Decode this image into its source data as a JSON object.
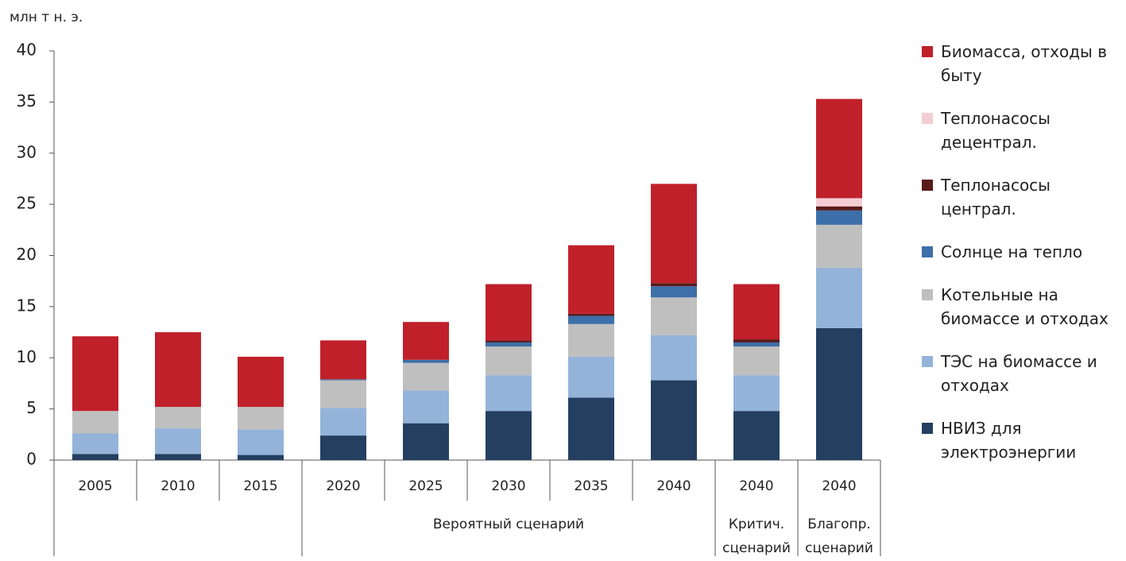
{
  "chart_data": {
    "type": "stacked-bar",
    "y_axis_label": "млн т н. э.",
    "categories": [
      "2005",
      "2010",
      "2015",
      "2020",
      "2025",
      "2030",
      "2035",
      "2040",
      "2040",
      "2040"
    ],
    "groups": [
      {
        "label": null,
        "span": 3
      },
      {
        "label": "Вероятный сценарий",
        "span": 5
      },
      {
        "label": "Критич. сценарий",
        "span": 1
      },
      {
        "label": "Благопр. сценарий",
        "span": 1
      }
    ],
    "series": [
      {
        "name": "Биомасса, отходы в быту",
        "color": "#c0202a",
        "values": [
          7.3,
          7.3,
          4.9,
          3.8,
          3.7,
          5.5,
          6.7,
          9.7,
          5.4,
          9.7
        ]
      },
      {
        "name": "Теплонасосы децентрал.",
        "color": "#f4cdd4",
        "values": [
          0,
          0,
          0,
          0,
          0,
          0,
          0,
          0,
          0,
          0.8
        ]
      },
      {
        "name": "Теплонасосы централ.",
        "color": "#5a1a1a",
        "values": [
          0,
          0,
          0,
          0,
          0,
          0.2,
          0.2,
          0.3,
          0.3,
          0.4
        ]
      },
      {
        "name": "Солнце на тепло",
        "color": "#3d6fa8",
        "values": [
          0,
          0,
          0,
          0.1,
          0.3,
          0.4,
          0.8,
          1.1,
          0.4,
          1.4
        ]
      },
      {
        "name": "Котельные на биомассе и отходах",
        "color": "#bfbfbf",
        "values": [
          2.2,
          2.1,
          2.2,
          2.7,
          2.7,
          2.8,
          3.2,
          3.7,
          2.8,
          4.2
        ]
      },
      {
        "name": "ТЭС на биомассе и отходах",
        "color": "#93b3d9",
        "values": [
          2.0,
          2.5,
          2.5,
          2.7,
          3.2,
          3.5,
          4.0,
          4.4,
          3.5,
          5.9
        ]
      },
      {
        "name": "НВИЗ для электроэнергии",
        "color": "#243f60",
        "values": [
          0.6,
          0.6,
          0.5,
          2.4,
          3.6,
          4.8,
          6.1,
          7.8,
          4.8,
          12.9
        ]
      }
    ],
    "ylim": [
      0,
      40
    ],
    "yticks": [
      0,
      5,
      10,
      15,
      20,
      25,
      30,
      35,
      40
    ],
    "grid": false
  }
}
